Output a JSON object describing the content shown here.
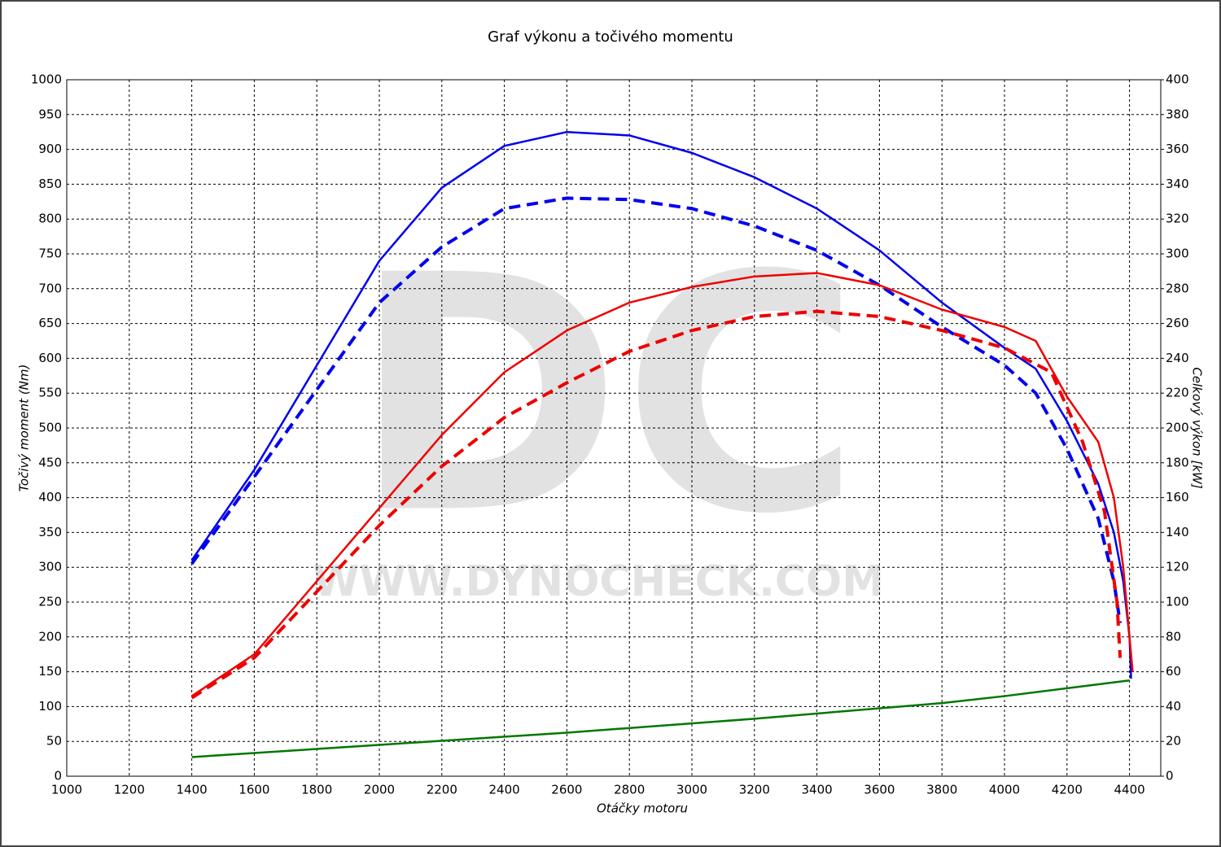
{
  "chart_data": {
    "type": "line",
    "title": "Graf výkonu a točivého momentu",
    "x_label": "Otáčky motoru",
    "y_label": "Točivý moment (Nm)",
    "y2_label": "Celkový výkon [kW]",
    "watermark": [
      "DC",
      "WWW.DYNOCHECK.COM"
    ],
    "xlim": [
      1000,
      4500
    ],
    "ylim": [
      0,
      1000
    ],
    "y2lim": [
      0,
      400
    ],
    "xticks": [
      1000,
      1200,
      1400,
      1600,
      1800,
      2000,
      2200,
      2400,
      2600,
      2800,
      3000,
      3200,
      3400,
      3600,
      3800,
      4000,
      4200,
      4400
    ],
    "yticks": [
      0,
      50,
      100,
      150,
      200,
      250,
      300,
      350,
      400,
      450,
      500,
      550,
      600,
      650,
      700,
      750,
      800,
      850,
      900,
      950,
      1000
    ],
    "y2ticks": [
      0,
      20,
      40,
      60,
      80,
      100,
      120,
      140,
      160,
      180,
      200,
      220,
      240,
      260,
      280,
      300,
      320,
      340,
      360,
      380,
      400
    ],
    "grid": true,
    "series": [
      {
        "color": "#0000ee",
        "dashed": false,
        "x": [
          1400,
          1600,
          1800,
          2000,
          2200,
          2400,
          2600,
          2800,
          3000,
          3200,
          3400,
          3600,
          3800,
          4000,
          4100,
          4200,
          4300,
          4350,
          4380,
          4400,
          4405
        ],
        "values": [
          310,
          440,
          590,
          740,
          845,
          905,
          925,
          920,
          895,
          860,
          815,
          755,
          680,
          615,
          585,
          510,
          420,
          350,
          280,
          200,
          140
        ]
      },
      {
        "color": "#0000ee",
        "dashed": true,
        "x": [
          1400,
          1600,
          1800,
          2000,
          2200,
          2400,
          2600,
          2800,
          3000,
          3200,
          3400,
          3600,
          3800,
          4000,
          4100,
          4200,
          4300,
          4350,
          4370
        ],
        "values": [
          305,
          430,
          555,
          680,
          760,
          815,
          830,
          828,
          815,
          790,
          755,
          705,
          645,
          590,
          550,
          470,
          370,
          280,
          220
        ]
      },
      {
        "color": "#ee0000",
        "dashed": false,
        "axis": "y2",
        "x": [
          1400,
          1600,
          1800,
          2000,
          2200,
          2400,
          2600,
          2800,
          3000,
          3200,
          3400,
          3600,
          3800,
          4000,
          4100,
          4200,
          4300,
          4350,
          4380,
          4400,
          4410
        ],
        "values": [
          46,
          70,
          112,
          154,
          196,
          232,
          256,
          272,
          281,
          287,
          289,
          282,
          268,
          258,
          250,
          218,
          192,
          160,
          120,
          80,
          60
        ]
      },
      {
        "color": "#ee0000",
        "dashed": true,
        "axis": "y2",
        "x": [
          1400,
          1600,
          1800,
          2000,
          2200,
          2400,
          2600,
          2800,
          3000,
          3200,
          3400,
          3600,
          3800,
          4000,
          4150,
          4250,
          4320,
          4360,
          4370
        ],
        "values": [
          45,
          68,
          106,
          144,
          178,
          206,
          226,
          244,
          256,
          264,
          267,
          264,
          256,
          246,
          232,
          192,
          152,
          100,
          68
        ]
      },
      {
        "color": "#007700",
        "dashed": false,
        "axis": "y2",
        "x": [
          1400,
          2000,
          2600,
          3200,
          3800,
          4000,
          4400
        ],
        "values": [
          11,
          18,
          25,
          33,
          42,
          46,
          55
        ]
      }
    ]
  }
}
